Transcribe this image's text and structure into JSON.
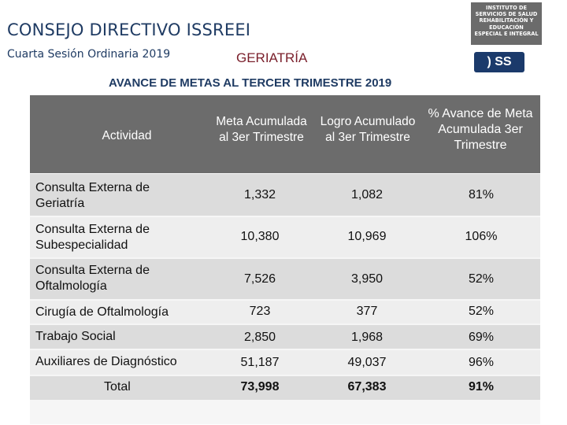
{
  "header": {
    "title": "CONSEJO DIRECTIVO ISSREEI",
    "session": "Cuarta Sesión Ordinaria 2019",
    "section": "GERIATRÍA"
  },
  "logo": {
    "lines": [
      "INSTITUTO DE",
      "SERVICIOS DE SALUD",
      "REHABILITACIÓN Y",
      "EDUCACIÓN",
      "ESPECIAL E INTEGRAL"
    ],
    "badge": ") SS"
  },
  "subtitle": "AVANCE DE METAS  AL TERCER TRIMESTRE 2019",
  "table": {
    "columns": {
      "activity": "Actividad",
      "goal": "Meta Acumulada al 3er Trimestre",
      "achievement": "Logro Acumulado al 3er Trimestre",
      "percent": "% Avance de Meta Acumulada 3er Trimestre"
    },
    "rows": [
      {
        "activity": "Consulta Externa de Geriatría",
        "goal": "1,332",
        "achievement": "1,082",
        "percent": "81%"
      },
      {
        "activity": "Consulta Externa de Subespecialidad",
        "goal": "10,380",
        "achievement": "10,969",
        "percent": "106%"
      },
      {
        "activity": "Consulta Externa de Oftalmología",
        "goal": "7,526",
        "achievement": "3,950",
        "percent": "52%"
      },
      {
        "activity": "Cirugía de Oftalmología",
        "goal": "723",
        "achievement": "377",
        "percent": "52%"
      },
      {
        "activity": "Trabajo Social",
        "goal": "2,850",
        "achievement": "1,968",
        "percent": "69%"
      },
      {
        "activity": "Auxiliares de Diagnóstico",
        "goal": "51,187",
        "achievement": "49,037",
        "percent": "96%"
      }
    ],
    "total": {
      "activity": "Total",
      "goal": "73,998",
      "achievement": "67,383",
      "percent": "91%"
    }
  }
}
